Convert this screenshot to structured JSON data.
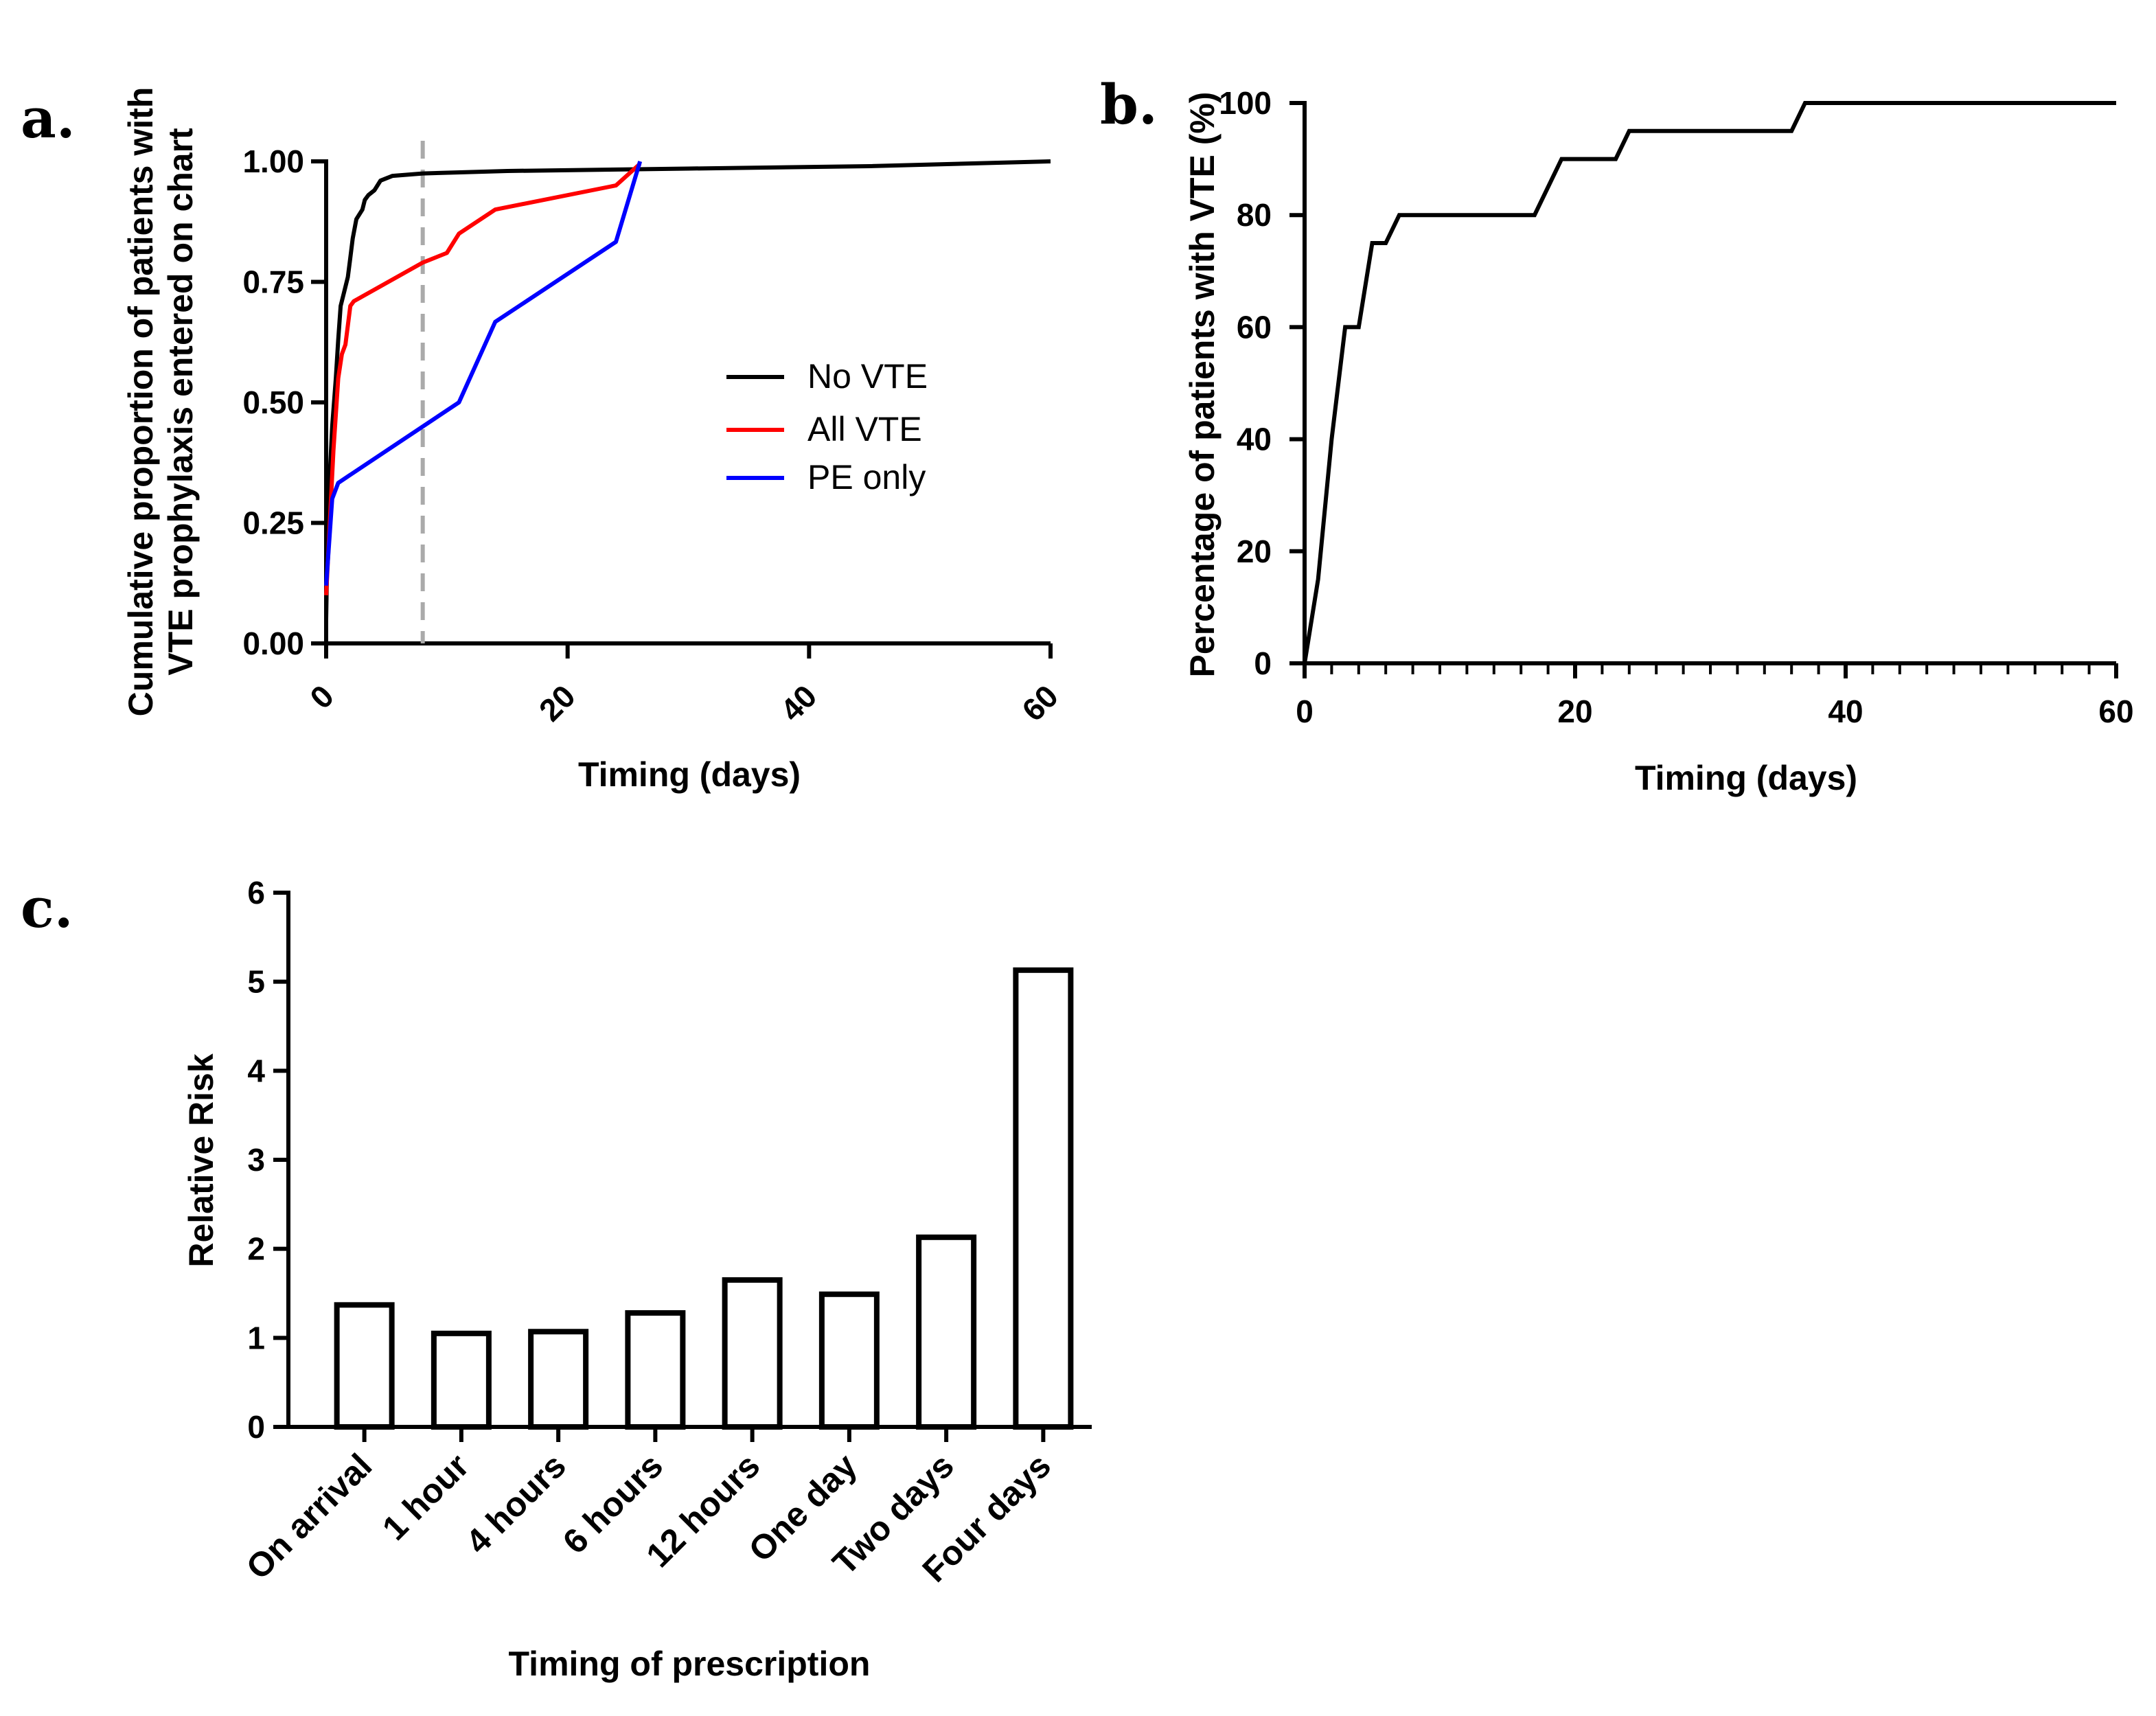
{
  "panel_labels": {
    "a": "a.",
    "b": "b.",
    "c": "c."
  },
  "chart_data": [
    {
      "type": "line",
      "title": "",
      "xlabel": "Timing (days)",
      "ylabel_lines": [
        "Cumulative proportion of patients with",
        "VTE prophylaxis entered on chart"
      ],
      "xlim": [
        0,
        60
      ],
      "ylim": [
        0,
        1
      ],
      "x_ticks": [
        "0",
        "20",
        "40",
        "60"
      ],
      "y_ticks": [
        "0.00",
        "0.25",
        "0.50",
        "0.75",
        "1.00"
      ],
      "reference_line_x": 8,
      "legend": [
        {
          "label": "No VTE",
          "color": "#000000"
        },
        {
          "label": "All VTE",
          "color": "#ff0000"
        },
        {
          "label": "PE only",
          "color": "#0000ff"
        }
      ],
      "series": [
        {
          "name": "No VTE",
          "color": "#000000",
          "points": [
            [
              0,
              0.05
            ],
            [
              0.1,
              0.2
            ],
            [
              0.3,
              0.35
            ],
            [
              0.5,
              0.45
            ],
            [
              0.8,
              0.55
            ],
            [
              1,
              0.63
            ],
            [
              1.2,
              0.7
            ],
            [
              1.5,
              0.73
            ],
            [
              1.8,
              0.76
            ],
            [
              2,
              0.8
            ],
            [
              2.2,
              0.84
            ],
            [
              2.5,
              0.88
            ],
            [
              3,
              0.9
            ],
            [
              3.2,
              0.92
            ],
            [
              3.5,
              0.93
            ],
            [
              4,
              0.94
            ],
            [
              4.5,
              0.96
            ],
            [
              5,
              0.965
            ],
            [
              5.5,
              0.97
            ],
            [
              8,
              0.975
            ],
            [
              15,
              0.98
            ],
            [
              30,
              0.985
            ],
            [
              45,
              0.99
            ],
            [
              60,
              1.0
            ]
          ]
        },
        {
          "name": "All VTE",
          "color": "#ff0000",
          "points": [
            [
              0,
              0.1
            ],
            [
              0.3,
              0.25
            ],
            [
              0.6,
              0.4
            ],
            [
              1,
              0.55
            ],
            [
              1.3,
              0.6
            ],
            [
              1.6,
              0.62
            ],
            [
              2,
              0.7
            ],
            [
              2.3,
              0.71
            ],
            [
              8,
              0.79
            ],
            [
              10,
              0.81
            ],
            [
              11,
              0.85
            ],
            [
              14,
              0.9
            ],
            [
              24,
              0.95
            ],
            [
              26,
              0.995
            ]
          ]
        },
        {
          "name": "PE only",
          "color": "#0000ff",
          "points": [
            [
              0,
              0.12
            ],
            [
              0.5,
              0.3
            ],
            [
              1,
              0.333
            ],
            [
              11,
              0.5
            ],
            [
              14,
              0.667
            ],
            [
              24,
              0.833
            ],
            [
              26,
              1.0
            ]
          ]
        }
      ]
    },
    {
      "type": "line",
      "title": "",
      "xlabel": "Timing (days)",
      "ylabel": "Percentage of patients with VTE (%)",
      "xlim": [
        0,
        60
      ],
      "ylim": [
        0,
        100
      ],
      "x_ticks": [
        "0",
        "20",
        "40",
        "60"
      ],
      "y_ticks": [
        "0",
        "20",
        "40",
        "60",
        "80",
        "100"
      ],
      "series": [
        {
          "name": "VTE",
          "color": "#000000",
          "points": [
            [
              0,
              0
            ],
            [
              1,
              15
            ],
            [
              2,
              40
            ],
            [
              3,
              60
            ],
            [
              4,
              60
            ],
            [
              5,
              75
            ],
            [
              6,
              75
            ],
            [
              7,
              80
            ],
            [
              17,
              80
            ],
            [
              19,
              90
            ],
            [
              23,
              90
            ],
            [
              24,
              95
            ],
            [
              36,
              95
            ],
            [
              37,
              100
            ],
            [
              60,
              100
            ]
          ]
        }
      ]
    },
    {
      "type": "bar",
      "title": "",
      "xlabel": "Timing of prescription",
      "ylabel": "Relative Risk",
      "ylim": [
        0,
        6
      ],
      "y_ticks": [
        "0",
        "1",
        "2",
        "3",
        "4",
        "5",
        "6"
      ],
      "categories": [
        "On arrival",
        "1 hour",
        "4 hours",
        "6 hours",
        "12 hours",
        "One day",
        "Two days",
        "Four days"
      ],
      "values": [
        1.37,
        1.05,
        1.07,
        1.28,
        1.65,
        1.49,
        2.13,
        5.13
      ]
    }
  ]
}
